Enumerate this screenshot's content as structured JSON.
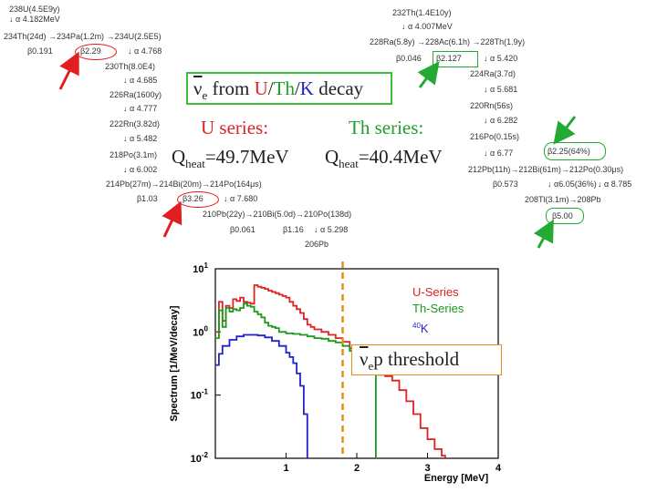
{
  "title": {
    "nu": "ν",
    "sub": "e",
    "from": " from ",
    "u": "U",
    "sl1": "/",
    "th": "Th",
    "sl2": "/",
    "k": "K",
    "decay": " decay"
  },
  "u_series": {
    "label": "U series:",
    "q_pre": "Q",
    "q_sub": "heat",
    "q_val": "=49.7MeV"
  },
  "th_series": {
    "label": "Th series:",
    "q_pre": "Q",
    "q_sub": "heat",
    "q_val": "=40.4MeV"
  },
  "u_chain": [
    "238U(4.5E9y)",
    "↓ α 4.182MeV",
    "234Th(24d) →234Pa(1.2m) →234U(2.5E5)",
    "β0.191",
    "β2.29",
    "↓ α 4.768",
    "230Th(8.0E4)",
    "↓ α 4.685",
    "226Ra(1600y)",
    "↓ α 4.777",
    "222Rn(3.82d)",
    "↓ α 5.482",
    "218Po(3.1m)",
    "↓ α 6.002",
    "214Pb(27m)→214Bi(20m)→214Po(164μs)",
    "β1.03",
    "β3.26",
    "↓ α 7.680",
    "210Pb(22y)→210Bi(5.0d)→210Po(138d)",
    "β0.061",
    "β1.16",
    "↓ α 5.298",
    "206Pb"
  ],
  "th_chain": [
    "232Th(1.4E10y)",
    "↓ α 4.007MeV",
    "228Ra(5.8y) →228Ac(6.1h) →228Th(1.9y)",
    "β0.046",
    "β2.127",
    "↓ α 5.420",
    "224Ra(3.7d)",
    "↓ α 5.681",
    "220Rn(56s)",
    "↓ α 6.282",
    "216Po(0.15s)",
    "↓ α 6.77",
    "212Pb(11h)→212Bi(61m)→212Po(0.30μs)",
    "β0.573",
    "↓ α6.05(36%)",
    "↓ α 8.785",
    "β2.25(64%)",
    "208Tl(3.1m)→208Pb",
    "β5.00"
  ],
  "chart_data": {
    "type": "line",
    "xlabel": "Energy [MeV]",
    "ylabel": "Spectrum [1/MeV/decay]",
    "xlim": [
      0,
      4
    ],
    "ylim_log10": [
      -2,
      1
    ],
    "xticks": [
      "1",
      "2",
      "3",
      "4"
    ],
    "yticks": [
      {
        "base": "10",
        "exp": "1"
      },
      {
        "base": "10",
        "exp": "0"
      },
      {
        "base": "10",
        "exp": "-1"
      },
      {
        "base": "10",
        "exp": "-2"
      }
    ],
    "threshold_mev": 1.8,
    "legend": [
      {
        "name": "U-Series",
        "color": "#dd2222"
      },
      {
        "name": "Th-Series",
        "color": "#1a9a1a"
      },
      {
        "name": "K",
        "sup": "40",
        "color": "#2222cc"
      }
    ],
    "series": [
      {
        "name": "U-Series",
        "color": "#dd2222",
        "points": [
          [
            0,
            1.0
          ],
          [
            0.05,
            3.0
          ],
          [
            0.1,
            1.5
          ],
          [
            0.15,
            2.6
          ],
          [
            0.2,
            2.4
          ],
          [
            0.25,
            3.3
          ],
          [
            0.3,
            3.1
          ],
          [
            0.35,
            3.5
          ],
          [
            0.4,
            3.0
          ],
          [
            0.45,
            2.9
          ],
          [
            0.5,
            2.8
          ],
          [
            0.55,
            5.5
          ],
          [
            0.6,
            5.2
          ],
          [
            0.65,
            5.0
          ],
          [
            0.7,
            4.8
          ],
          [
            0.75,
            4.5
          ],
          [
            0.8,
            4.3
          ],
          [
            0.85,
            4.1
          ],
          [
            0.9,
            3.9
          ],
          [
            0.95,
            3.7
          ],
          [
            1.0,
            3.5
          ],
          [
            1.05,
            3.0
          ],
          [
            1.1,
            2.6
          ],
          [
            1.15,
            2.3
          ],
          [
            1.2,
            2.0
          ],
          [
            1.25,
            1.6
          ],
          [
            1.3,
            1.3
          ],
          [
            1.35,
            1.2
          ],
          [
            1.4,
            1.1
          ],
          [
            1.5,
            1.0
          ],
          [
            1.6,
            0.9
          ],
          [
            1.7,
            0.8
          ],
          [
            1.8,
            0.7
          ],
          [
            1.9,
            0.55
          ],
          [
            2.0,
            0.45
          ],
          [
            2.1,
            0.35
          ],
          [
            2.2,
            0.25
          ],
          [
            2.3,
            0.21
          ],
          [
            2.4,
            0.2
          ],
          [
            2.5,
            0.17
          ],
          [
            2.6,
            0.12
          ],
          [
            2.7,
            0.08
          ],
          [
            2.8,
            0.05
          ],
          [
            2.9,
            0.03
          ],
          [
            3.0,
            0.02
          ],
          [
            3.1,
            0.014
          ],
          [
            3.2,
            0.011
          ],
          [
            3.25,
            0.01
          ]
        ]
      },
      {
        "name": "Th-Series",
        "color": "#1a9a1a",
        "points": [
          [
            0,
            0.8
          ],
          [
            0.05,
            2.2
          ],
          [
            0.1,
            1.2
          ],
          [
            0.15,
            2.4
          ],
          [
            0.2,
            2.1
          ],
          [
            0.25,
            2.3
          ],
          [
            0.3,
            2.2
          ],
          [
            0.35,
            2.4
          ],
          [
            0.4,
            2.8
          ],
          [
            0.45,
            2.6
          ],
          [
            0.5,
            2.5
          ],
          [
            0.55,
            2.1
          ],
          [
            0.6,
            1.9
          ],
          [
            0.65,
            1.7
          ],
          [
            0.7,
            1.4
          ],
          [
            0.75,
            1.25
          ],
          [
            0.8,
            1.2
          ],
          [
            0.85,
            1.15
          ],
          [
            0.9,
            1.0
          ],
          [
            1.0,
            0.95
          ],
          [
            1.1,
            0.93
          ],
          [
            1.2,
            0.9
          ],
          [
            1.3,
            0.85
          ],
          [
            1.4,
            0.8
          ],
          [
            1.5,
            0.78
          ],
          [
            1.6,
            0.72
          ],
          [
            1.7,
            0.68
          ],
          [
            1.8,
            0.6
          ],
          [
            1.9,
            0.5
          ],
          [
            2.0,
            0.45
          ],
          [
            2.1,
            0.4
          ],
          [
            2.2,
            0.35
          ],
          [
            2.25,
            0.3
          ],
          [
            2.27,
            0.01
          ]
        ]
      },
      {
        "name": "K",
        "color": "#2222cc",
        "points": [
          [
            0,
            0.3
          ],
          [
            0.05,
            0.45
          ],
          [
            0.1,
            0.6
          ],
          [
            0.2,
            0.75
          ],
          [
            0.3,
            0.85
          ],
          [
            0.4,
            0.9
          ],
          [
            0.5,
            0.9
          ],
          [
            0.6,
            0.88
          ],
          [
            0.7,
            0.82
          ],
          [
            0.8,
            0.72
          ],
          [
            0.9,
            0.6
          ],
          [
            1.0,
            0.47
          ],
          [
            1.05,
            0.4
          ],
          [
            1.1,
            0.32
          ],
          [
            1.15,
            0.22
          ],
          [
            1.2,
            0.14
          ],
          [
            1.25,
            0.05
          ],
          [
            1.3,
            0.01
          ]
        ]
      }
    ]
  },
  "threshold": {
    "nu": "ν",
    "sub": "e",
    "p": "p threshold"
  }
}
